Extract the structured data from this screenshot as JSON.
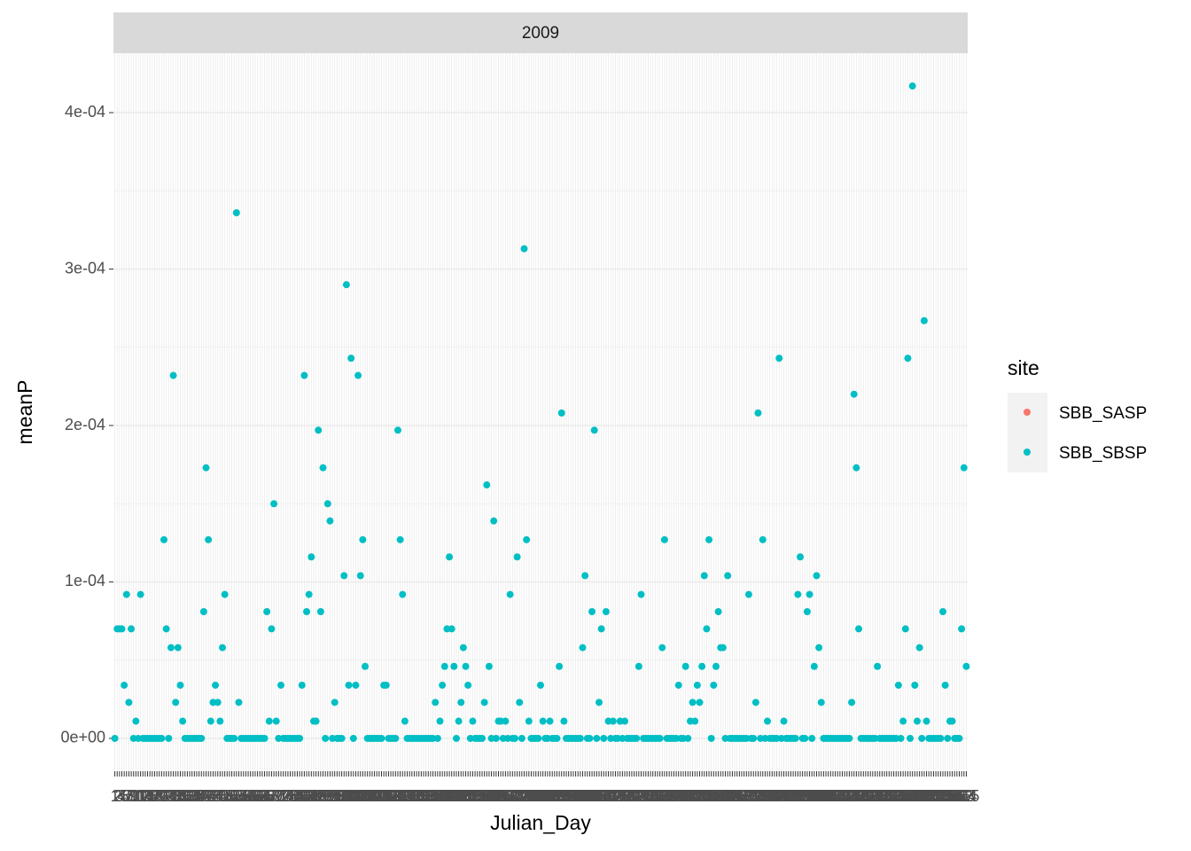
{
  "chart_data": {
    "type": "scatter",
    "facet": "2009",
    "x_label": "Julian_Day",
    "y_label": "meanP",
    "legend_title": "site",
    "legend": "right",
    "grid": true,
    "ylim": [
      -2.1e-05,
      0.000438
    ],
    "yticks": [
      {
        "value": 0,
        "label": "0e+00"
      },
      {
        "value": 0.0001,
        "label": "1e-04"
      },
      {
        "value": 0.0002,
        "label": "2e-04"
      },
      {
        "value": 0.0003,
        "label": "3e-04"
      },
      {
        "value": 0.0004,
        "label": "4e-04"
      }
    ],
    "categories": [
      1,
      2,
      3,
      4,
      5,
      6,
      7,
      8,
      9,
      10,
      11,
      12,
      13,
      14,
      15,
      16,
      17,
      18,
      19,
      20,
      21,
      22,
      23,
      24,
      25,
      26,
      27,
      28,
      29,
      30,
      31,
      32,
      33,
      34,
      35,
      36,
      37,
      38,
      39,
      40,
      41,
      42,
      43,
      44,
      45,
      46,
      47,
      48,
      49,
      50,
      51,
      52,
      53,
      54,
      55,
      56,
      57,
      58,
      59,
      60,
      61,
      62,
      63,
      64,
      65,
      66,
      67,
      68,
      69,
      70,
      71,
      72,
      73,
      74,
      75,
      76,
      77,
      78,
      79,
      80,
      81,
      82,
      83,
      84,
      85,
      86,
      87,
      88,
      89,
      90,
      91,
      92,
      93,
      94,
      95,
      96,
      97,
      98,
      99,
      100,
      101,
      102,
      103,
      104,
      105,
      106,
      107,
      108,
      109,
      110,
      111,
      112,
      113,
      114,
      115,
      116,
      117,
      118,
      119,
      120,
      121,
      122,
      123,
      124,
      125,
      126,
      127,
      128,
      129,
      130,
      131,
      132,
      133,
      134,
      135,
      136,
      137,
      138,
      139,
      140,
      141,
      142,
      143,
      144,
      145,
      146,
      147,
      148,
      149,
      150,
      151,
      152,
      153,
      154,
      155,
      156,
      157,
      158,
      159,
      160,
      161,
      162,
      163,
      164,
      165,
      166,
      167,
      168,
      169,
      170,
      171,
      172,
      173,
      174,
      175,
      176,
      177,
      178,
      179,
      180,
      181,
      182,
      183,
      184,
      185,
      186,
      187,
      188,
      189,
      190,
      191,
      192,
      193,
      194,
      195,
      196,
      197,
      198,
      199,
      200,
      201,
      202,
      203,
      204,
      205,
      206,
      207,
      208,
      209,
      210,
      211,
      212,
      213,
      214,
      215,
      216,
      217,
      218,
      219,
      220,
      221,
      222,
      223,
      224,
      225,
      226,
      227,
      228,
      229,
      230,
      231,
      232,
      233,
      234,
      235,
      236,
      237,
      238,
      239,
      240,
      241,
      242,
      243,
      244,
      245,
      246,
      247,
      248,
      249,
      250,
      251,
      252,
      253,
      254,
      255,
      256,
      257,
      258,
      259,
      260,
      261,
      262,
      263,
      264,
      265,
      266,
      267,
      268,
      269,
      270,
      271,
      272,
      273,
      274,
      275,
      276,
      277,
      278,
      279,
      280,
      281,
      282,
      283,
      284,
      285,
      286,
      287,
      288,
      289,
      290,
      291,
      292,
      293,
      294,
      295,
      296,
      297,
      298,
      299,
      300,
      301,
      302,
      303,
      304,
      305,
      306,
      307,
      308,
      309,
      310,
      311,
      312,
      313,
      314,
      315,
      316,
      317,
      318,
      319,
      320,
      321,
      322,
      323,
      324,
      325,
      326,
      327,
      328,
      329,
      330,
      331,
      332,
      333,
      334,
      335,
      336,
      337,
      338,
      339,
      340,
      341,
      342,
      343,
      344,
      345,
      346,
      347,
      348,
      349,
      350,
      351,
      352,
      353,
      354,
      355,
      356,
      357,
      358,
      359,
      360,
      361,
      362,
      363,
      364,
      365
    ],
    "series": [
      {
        "name": "SBB_SASP",
        "color": "#F8766D"
      },
      {
        "name": "SBB_SBSP",
        "color": "#00BFC4",
        "values": [
          0,
          7e-05,
          7e-05,
          7e-05,
          3.4e-05,
          9.2e-05,
          2.3e-05,
          7e-05,
          0,
          1.1e-05,
          0,
          9.2e-05,
          0,
          0,
          0,
          0,
          0,
          0,
          0,
          0,
          0,
          0.000127,
          7e-05,
          0,
          5.8e-05,
          0.000232,
          2.3e-05,
          5.8e-05,
          3.4e-05,
          1.1e-05,
          0,
          0,
          0,
          0,
          0,
          0,
          0,
          0,
          8.1e-05,
          0.000173,
          0.000127,
          1.1e-05,
          2.3e-05,
          3.4e-05,
          2.3e-05,
          1.1e-05,
          5.8e-05,
          9.2e-05,
          0,
          0,
          0,
          0,
          0.000336,
          2.3e-05,
          0,
          0,
          0,
          0,
          0,
          0,
          0,
          0,
          0,
          0,
          0,
          8.1e-05,
          1.1e-05,
          7e-05,
          0.00015,
          1.1e-05,
          0,
          3.4e-05,
          0,
          0,
          0,
          0,
          0,
          0,
          0,
          0,
          3.4e-05,
          0.000232,
          8.1e-05,
          9.2e-05,
          0.000116,
          1.1e-05,
          1.1e-05,
          0.000197,
          8.1e-05,
          0.000173,
          0,
          0.00015,
          0.000139,
          0,
          2.3e-05,
          0,
          0,
          0,
          0.000104,
          0.00029,
          3.4e-05,
          0.000243,
          0,
          3.4e-05,
          0.000232,
          0.000104,
          0.000127,
          4.6e-05,
          0,
          0,
          0,
          0,
          0,
          0,
          0,
          3.4e-05,
          3.4e-05,
          0,
          0,
          0,
          0,
          0.000197,
          0.000127,
          9.2e-05,
          1.1e-05,
          0,
          0,
          0,
          0,
          0,
          0,
          0,
          0,
          0,
          0,
          0,
          0,
          2.3e-05,
          0,
          1.1e-05,
          3.4e-05,
          4.6e-05,
          7e-05,
          0.000116,
          7e-05,
          4.6e-05,
          0,
          1.1e-05,
          2.3e-05,
          5.8e-05,
          4.6e-05,
          3.4e-05,
          0,
          1.1e-05,
          0,
          0,
          0,
          0,
          2.3e-05,
          0.000162,
          4.6e-05,
          0,
          0.000139,
          0,
          1.1e-05,
          1.1e-05,
          0,
          1.1e-05,
          0,
          9.2e-05,
          0,
          0,
          0.000116,
          2.3e-05,
          0,
          0.000313,
          0.000127,
          1.1e-05,
          0,
          0,
          0,
          0,
          3.4e-05,
          1.1e-05,
          0,
          0,
          1.1e-05,
          0,
          0,
          0,
          4.6e-05,
          0.000208,
          1.1e-05,
          0,
          0,
          0,
          0,
          0,
          0,
          0,
          5.8e-05,
          0.000104,
          0,
          0,
          8.1e-05,
          0.000197,
          0,
          2.3e-05,
          7e-05,
          0,
          8.1e-05,
          1.1e-05,
          0,
          1.1e-05,
          0,
          0,
          1.1e-05,
          0,
          1.1e-05,
          0,
          0,
          0,
          0,
          0,
          4.6e-05,
          9.2e-05,
          0,
          0,
          0,
          0,
          0,
          0,
          0,
          0,
          5.8e-05,
          0.000127,
          0,
          0,
          0,
          0,
          0,
          3.4e-05,
          0,
          0,
          4.6e-05,
          0,
          1.1e-05,
          2.3e-05,
          1.1e-05,
          3.4e-05,
          2.3e-05,
          4.6e-05,
          0.000104,
          7e-05,
          0.000127,
          0,
          3.4e-05,
          4.6e-05,
          8.1e-05,
          5.8e-05,
          5.8e-05,
          0,
          0.000104,
          0,
          0,
          0,
          0,
          0,
          0,
          0,
          0,
          9.2e-05,
          0,
          0,
          2.3e-05,
          0.000208,
          0,
          0.000127,
          0,
          1.1e-05,
          0,
          0,
          0,
          0,
          0.000243,
          0,
          1.1e-05,
          0,
          0,
          0,
          0,
          0,
          9.2e-05,
          0.000116,
          0,
          0,
          8.1e-05,
          9.2e-05,
          0,
          4.6e-05,
          0.000104,
          5.8e-05,
          2.3e-05,
          0,
          0,
          0,
          0,
          0,
          0,
          0,
          0,
          0,
          0,
          0,
          0,
          2.3e-05,
          0.00022,
          0.000173,
          7e-05,
          0,
          0,
          0,
          0,
          0,
          0,
          0,
          4.6e-05,
          0,
          0,
          0,
          0,
          0,
          0,
          0,
          0,
          3.4e-05,
          0,
          1.1e-05,
          7e-05,
          0.000243,
          0,
          0.000417,
          3.4e-05,
          1.1e-05,
          5.8e-05,
          0,
          0.000267,
          1.1e-05,
          0,
          0,
          0,
          0,
          0,
          0,
          8.1e-05,
          3.4e-05,
          0,
          1.1e-05,
          1.1e-05,
          0,
          0,
          0,
          7e-05,
          0.000173,
          4.6e-05
        ]
      }
    ]
  }
}
